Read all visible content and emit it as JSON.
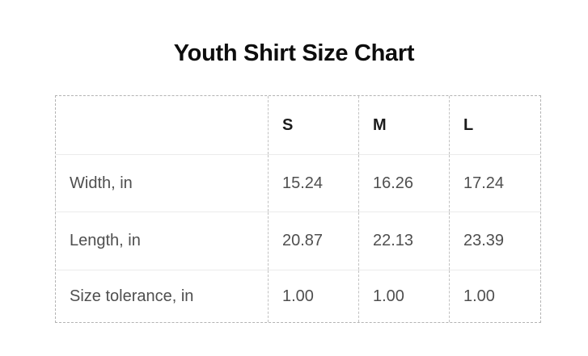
{
  "title": "Youth Shirt Size Chart",
  "chart_data": {
    "type": "table",
    "title": "Youth Shirt Size Chart",
    "columns": [
      "",
      "S",
      "M",
      "L"
    ],
    "rows": [
      [
        "Width, in",
        "15.24",
        "16.26",
        "17.24"
      ],
      [
        "Length, in",
        "20.87",
        "22.13",
        "23.39"
      ],
      [
        "Size tolerance, in",
        "1.00",
        "1.00",
        "1.00"
      ]
    ],
    "units": "in"
  },
  "colors": {
    "background": "#ffffff",
    "title_text": "#0d0d0d",
    "header_text": "#1c1c1c",
    "body_text": "#4f4f4f",
    "outer_dashed_border": "#b3b3b3",
    "column_dashed_border": "#c2c2c2",
    "row_divider": "#ebebeb"
  }
}
